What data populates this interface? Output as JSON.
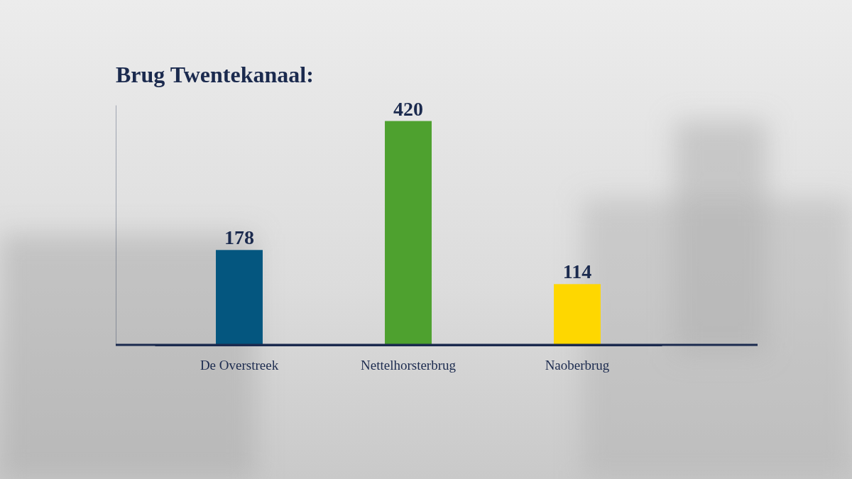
{
  "chart_data": {
    "type": "bar",
    "title": "Brug Twentekanaal:",
    "categories": [
      "De Overstreek",
      "Nettelhorsterbrug",
      "Naoberbrug"
    ],
    "values": [
      178,
      420,
      114
    ],
    "colors": [
      "#04567f",
      "#4ea12f",
      "#fed700"
    ],
    "ylim": [
      0,
      450
    ],
    "data_labels": true,
    "tick_labels": "x",
    "grid": false
  }
}
